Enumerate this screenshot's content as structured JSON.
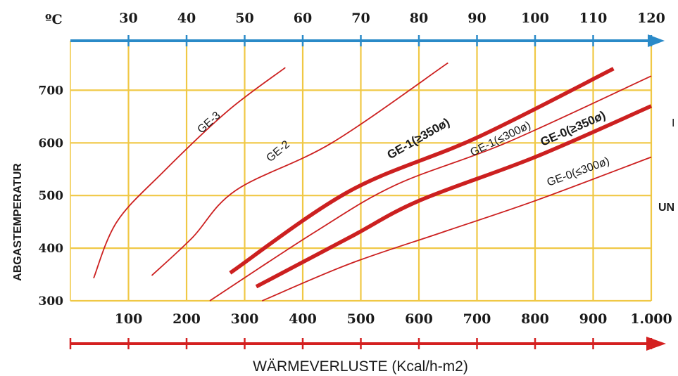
{
  "chart_data": {
    "type": "line",
    "top_axis": {
      "unit_label": "ºC",
      "ticks": [
        "30",
        "40",
        "50",
        "60",
        "70",
        "80",
        "90",
        "100",
        "110",
        "120"
      ],
      "color": "#2a8ac8"
    },
    "x_axis": {
      "title": "WÄRMEVERLUSTE (Kcal/h-m2)",
      "ticks": [
        "100",
        "200",
        "300",
        "400",
        "500",
        "600",
        "700",
        "800",
        "900",
        "1.000"
      ],
      "tick_values": [
        100,
        200,
        300,
        400,
        500,
        600,
        700,
        800,
        900,
        1000
      ],
      "range": [
        0,
        1000
      ],
      "color": "#d42020"
    },
    "y_axis": {
      "title": "ABGASTEMPERATUR",
      "ticks": [
        "300",
        "400",
        "500",
        "600",
        "700"
      ],
      "tick_values": [
        300,
        400,
        500,
        600,
        700
      ],
      "range": [
        300,
        800
      ]
    },
    "grid": true,
    "grid_color": "#f0c845",
    "line_color": "#cc2020",
    "series": [
      {
        "name": "GE-3",
        "bold": false,
        "label": "GE-3",
        "x": [
          40,
          80,
          160,
          270,
          370
        ],
        "y": [
          343,
          450,
          545,
          660,
          743
        ]
      },
      {
        "name": "GE-2",
        "bold": false,
        "label": "GE-2",
        "x": [
          140,
          210,
          285,
          450,
          650
        ],
        "y": [
          348,
          420,
          510,
          600,
          752
        ]
      },
      {
        "name": "GE-1(≥350ø)",
        "bold": true,
        "label_prefix": "GE-1",
        "label_suffix": "(≥350ø)",
        "x": [
          275,
          480,
          700,
          935
        ],
        "y": [
          353,
          508,
          610,
          741
        ]
      },
      {
        "name": "GE-1(≤300ø)",
        "bold": false,
        "label": "GE-1(≤300ø)",
        "x": [
          240,
          420,
          560,
          750,
          1000
        ],
        "y": [
          300,
          430,
          520,
          600,
          727
        ]
      },
      {
        "name": "GE-0(≥350ø)",
        "bold": true,
        "label": "GE-0(≥350ø)",
        "x": [
          320,
          480,
          600,
          800,
          1000
        ],
        "y": [
          327,
          420,
          490,
          573,
          670
        ]
      },
      {
        "name": "GE-0(≤300ø)",
        "bold": false,
        "label": "GE-0(≤300ø)",
        "x": [
          330,
          480,
          640,
          800,
          1000
        ],
        "y": [
          300,
          370,
          430,
          490,
          573
        ]
      }
    ]
  },
  "fragments": {
    "right_top": "I",
    "right_mid": "UN"
  }
}
